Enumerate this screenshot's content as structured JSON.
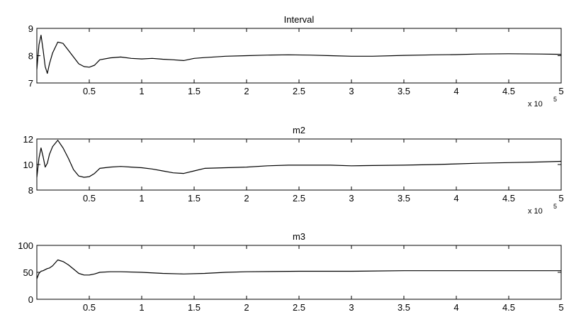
{
  "chart_data": [
    {
      "type": "line",
      "title": "Interval",
      "xlim": [
        0,
        500000
      ],
      "ylim": [
        7,
        9
      ],
      "xticks": [
        50000,
        100000,
        150000,
        200000,
        250000,
        300000,
        350000,
        400000,
        450000,
        500000
      ],
      "xtick_labels": [
        "0.5",
        "1",
        "1.5",
        "2",
        "2.5",
        "3",
        "3.5",
        "4",
        "4.5",
        "5"
      ],
      "yticks": [
        7,
        8,
        9
      ],
      "ytick_labels": [
        "7",
        "8",
        "9"
      ],
      "x_multiplier": {
        "base": "x 10",
        "exponent": "5"
      },
      "series": [
        {
          "x": [
            0,
            2000,
            4000,
            6000,
            8000,
            10000,
            12000,
            15000,
            20000,
            25000,
            30000,
            35000,
            40000,
            45000,
            50000,
            55000,
            60000,
            70000,
            80000,
            90000,
            100000,
            110000,
            120000,
            130000,
            140000,
            150000,
            160000,
            180000,
            200000,
            220000,
            240000,
            260000,
            280000,
            300000,
            320000,
            350000,
            380000,
            400000,
            420000,
            450000,
            480000,
            500000
          ],
          "y": [
            7.5,
            8.4,
            8.75,
            8.2,
            7.6,
            7.35,
            7.7,
            8.1,
            8.5,
            8.45,
            8.2,
            7.95,
            7.7,
            7.6,
            7.58,
            7.65,
            7.85,
            7.92,
            7.95,
            7.9,
            7.88,
            7.9,
            7.87,
            7.85,
            7.82,
            7.9,
            7.93,
            7.98,
            8.0,
            8.02,
            8.03,
            8.02,
            8.0,
            7.98,
            7.98,
            8.01,
            8.03,
            8.04,
            8.06,
            8.07,
            8.06,
            8.05
          ]
        }
      ]
    },
    {
      "type": "line",
      "title": "m2",
      "xlim": [
        0,
        500000
      ],
      "ylim": [
        8,
        12
      ],
      "xticks": [
        50000,
        100000,
        150000,
        200000,
        250000,
        300000,
        350000,
        400000,
        450000,
        500000
      ],
      "xtick_labels": [
        "0.5",
        "1",
        "1.5",
        "2",
        "2.5",
        "3",
        "3.5",
        "4",
        "4.5",
        "5"
      ],
      "yticks": [
        8,
        10,
        12
      ],
      "ytick_labels": [
        "8",
        "10",
        "12"
      ],
      "x_multiplier": {
        "base": "x 10",
        "exponent": "5"
      },
      "series": [
        {
          "x": [
            0,
            2000,
            4000,
            6000,
            8000,
            10000,
            12000,
            15000,
            20000,
            25000,
            30000,
            35000,
            40000,
            45000,
            50000,
            55000,
            60000,
            70000,
            80000,
            90000,
            100000,
            110000,
            120000,
            130000,
            140000,
            150000,
            160000,
            180000,
            200000,
            220000,
            240000,
            260000,
            280000,
            300000,
            320000,
            350000,
            380000,
            400000,
            420000,
            450000,
            480000,
            500000
          ],
          "y": [
            9.0,
            10.5,
            11.3,
            10.6,
            9.8,
            10.1,
            10.8,
            11.4,
            11.9,
            11.3,
            10.5,
            9.6,
            9.1,
            9.0,
            9.05,
            9.3,
            9.7,
            9.8,
            9.85,
            9.8,
            9.75,
            9.65,
            9.5,
            9.35,
            9.3,
            9.5,
            9.7,
            9.75,
            9.8,
            9.9,
            9.95,
            9.95,
            9.95,
            9.9,
            9.92,
            9.95,
            10.0,
            10.05,
            10.1,
            10.15,
            10.2,
            10.25
          ]
        }
      ]
    },
    {
      "type": "line",
      "title": "m3",
      "xlim": [
        0,
        500000
      ],
      "ylim": [
        0,
        100
      ],
      "xticks": [
        50000,
        100000,
        150000,
        200000,
        250000,
        300000,
        350000,
        400000,
        450000,
        500000
      ],
      "xtick_labels": [
        "0.5",
        "1",
        "1.5",
        "2",
        "2.5",
        "3",
        "3.5",
        "4",
        "4.5",
        "5"
      ],
      "yticks": [
        0,
        50,
        100
      ],
      "ytick_labels": [
        "0",
        "50",
        "100"
      ],
      "series": [
        {
          "x": [
            0,
            2000,
            4000,
            6000,
            8000,
            10000,
            12000,
            15000,
            20000,
            25000,
            30000,
            35000,
            40000,
            45000,
            50000,
            55000,
            60000,
            70000,
            80000,
            100000,
            120000,
            140000,
            160000,
            180000,
            200000,
            250000,
            300000,
            350000,
            400000,
            450000,
            500000
          ],
          "y": [
            38,
            48,
            52,
            53,
            55,
            57,
            58,
            62,
            73,
            70,
            64,
            56,
            48,
            45,
            45,
            47,
            50,
            51,
            51,
            50,
            48,
            47,
            48,
            50,
            51,
            52,
            52,
            53,
            53,
            53,
            53
          ]
        }
      ]
    }
  ]
}
